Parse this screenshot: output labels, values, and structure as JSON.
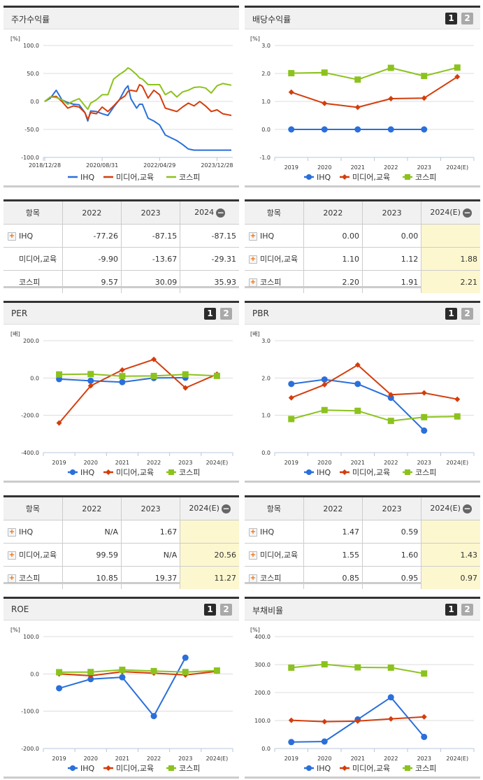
{
  "page_buttons": [
    "1",
    "2"
  ],
  "colors": {
    "IHQ": "#2a6fdb",
    "media": "#d43d0c",
    "kospi": "#8cc21e",
    "dark_border": "#333333",
    "highlight": "#fdf7cf"
  },
  "chart_data": [
    {
      "type": "line",
      "title": "주가수익률",
      "unit": "[%]",
      "ylim": [
        -100,
        100
      ],
      "yticks": [
        100,
        50,
        0,
        -50,
        -100
      ],
      "ytick_labels": [
        "100.0",
        "50.0",
        "0.0",
        "-50.0",
        "-100.0"
      ],
      "x": [
        "2018-12",
        "2019-02",
        "2019-04",
        "2019-06",
        "2019-08",
        "2019-10",
        "2019-12",
        "2020-02",
        "2020-03",
        "2020-04",
        "2020-06",
        "2020-08",
        "2020-10",
        "2020-12",
        "2021-02",
        "2021-04",
        "2021-05",
        "2021-06",
        "2021-08",
        "2021-09",
        "2021-10",
        "2021-12",
        "2022-02",
        "2022-04",
        "2022-06",
        "2022-08",
        "2022-10",
        "2022-12",
        "2023-02",
        "2023-04",
        "2023-06",
        "2023-08",
        "2023-10",
        "2023-12",
        "2024-02",
        "2024-04",
        "2024-05"
      ],
      "xticks": [
        "2018-12",
        "2020-08",
        "2022-04",
        "2023-12"
      ],
      "xtick_labels": [
        "2018/12/28",
        "2020/08/31",
        "2022/04/29",
        "2023/12/28"
      ],
      "grid": true,
      "legend": "bottom",
      "series": [
        {
          "name": "IHQ",
          "color": "#2a6fdb",
          "values": [
            0,
            6,
            20,
            3,
            -2,
            -5,
            -6,
            -20,
            -35,
            -17,
            -18,
            -22,
            -25,
            -10,
            3,
            22,
            28,
            5,
            -12,
            -5,
            -5,
            -30,
            -35,
            -42,
            -60,
            -65,
            -70,
            -77,
            -85,
            -87,
            -87,
            -87,
            -87,
            -87,
            -87,
            -87,
            -87
          ]
        },
        {
          "name": "미디어,교육",
          "color": "#d43d0c",
          "values": [
            0,
            8,
            9,
            0,
            -12,
            -8,
            -10,
            -20,
            -32,
            -20,
            -22,
            -10,
            -18,
            -8,
            3,
            10,
            18,
            20,
            18,
            30,
            27,
            6,
            20,
            12,
            -12,
            -15,
            -18,
            -10,
            -3,
            -8,
            0,
            -8,
            -18,
            -15,
            -22,
            -24,
            -25
          ]
        },
        {
          "name": "코스피",
          "color": "#8cc21e",
          "values": [
            0,
            8,
            7,
            3,
            -5,
            1,
            5,
            -8,
            -14,
            -3,
            3,
            12,
            12,
            40,
            48,
            55,
            60,
            57,
            48,
            42,
            40,
            30,
            30,
            30,
            12,
            18,
            8,
            17,
            20,
            25,
            26,
            24,
            15,
            28,
            32,
            30,
            29
          ]
        }
      ]
    },
    {
      "type": "line",
      "title": "배당수익률",
      "unit": "[%]",
      "ylim": [
        -1,
        3
      ],
      "yticks": [
        3,
        2,
        1,
        0,
        -1
      ],
      "ytick_labels": [
        "3.0",
        "2.0",
        "1.0",
        "0.0",
        "-1.0"
      ],
      "categories": [
        "2019",
        "2020",
        "2021",
        "2022",
        "2023",
        "2024(E)"
      ],
      "grid": true,
      "legend": "bottom",
      "series": [
        {
          "name": "IHQ",
          "color": "#2a6fdb",
          "marker": "circle",
          "values": [
            0,
            0,
            0,
            0,
            0,
            null
          ]
        },
        {
          "name": "미디어,교육",
          "color": "#d43d0c",
          "marker": "diamond",
          "values": [
            1.33,
            0.93,
            0.79,
            1.1,
            1.12,
            1.88
          ]
        },
        {
          "name": "코스피",
          "color": "#8cc21e",
          "marker": "square",
          "values": [
            2.01,
            2.03,
            1.78,
            2.2,
            1.91,
            2.21
          ]
        }
      ]
    },
    {
      "type": "line",
      "title": "PER",
      "unit": "[배]",
      "ylim": [
        -400,
        200
      ],
      "yticks": [
        200,
        0,
        -200,
        -400
      ],
      "ytick_labels": [
        "200.0",
        "0.0",
        "-200.0",
        "-400.0"
      ],
      "categories": [
        "2019",
        "2020",
        "2021",
        "2022",
        "2023",
        "2024(E)"
      ],
      "grid": true,
      "legend": "bottom",
      "series": [
        {
          "name": "IHQ",
          "color": "#2a6fdb",
          "marker": "circle",
          "values": [
            -6,
            -15,
            -22,
            0,
            1.67,
            null
          ]
        },
        {
          "name": "미디어,교육",
          "color": "#d43d0c",
          "marker": "diamond",
          "values": [
            -241,
            -42,
            43,
            99.59,
            -53,
            20.56
          ]
        },
        {
          "name": "코스피",
          "color": "#8cc21e",
          "marker": "square",
          "values": [
            19,
            21,
            10,
            10.85,
            19.37,
            11.27
          ]
        }
      ]
    },
    {
      "type": "line",
      "title": "PBR",
      "unit": "[배]",
      "ylim": [
        0,
        3
      ],
      "yticks": [
        3,
        2,
        1,
        0
      ],
      "ytick_labels": [
        "3.0",
        "2.0",
        "1.0",
        "0.0"
      ],
      "categories": [
        "2019",
        "2020",
        "2021",
        "2022",
        "2023",
        "2024(E)"
      ],
      "grid": true,
      "legend": "bottom",
      "series": [
        {
          "name": "IHQ",
          "color": "#2a6fdb",
          "marker": "circle",
          "values": [
            1.84,
            1.96,
            1.84,
            1.47,
            0.59,
            null
          ]
        },
        {
          "name": "미디어,교육",
          "color": "#d43d0c",
          "marker": "diamond",
          "values": [
            1.47,
            1.82,
            2.35,
            1.55,
            1.6,
            1.43
          ]
        },
        {
          "name": "코스피",
          "color": "#8cc21e",
          "marker": "square",
          "values": [
            0.9,
            1.14,
            1.12,
            0.85,
            0.95,
            0.97
          ]
        }
      ]
    },
    {
      "type": "line",
      "title": "ROE",
      "unit": "[%]",
      "ylim": [
        -200,
        100
      ],
      "yticks": [
        100,
        0,
        -100,
        -200
      ],
      "ytick_labels": [
        "100.0",
        "0.0",
        "-100.0",
        "-200.0"
      ],
      "categories": [
        "2019",
        "2020",
        "2021",
        "2022",
        "2023",
        "2024(E)"
      ],
      "grid": true,
      "legend": "bottom",
      "series": [
        {
          "name": "IHQ",
          "color": "#2a6fdb",
          "marker": "circle",
          "values": [
            -38.5,
            -14,
            -9,
            -113,
            43.5,
            null
          ]
        },
        {
          "name": "미디어,교육",
          "color": "#d43d0c",
          "marker": "diamond",
          "values": [
            0,
            -5,
            6,
            2,
            -3,
            7
          ]
        },
        {
          "name": "코스피",
          "color": "#8cc21e",
          "marker": "square",
          "values": [
            4.5,
            5,
            11,
            7.5,
            5,
            9
          ]
        }
      ]
    },
    {
      "type": "line",
      "title": "부채비율",
      "unit": "[%]",
      "ylim": [
        0,
        400
      ],
      "yticks": [
        400,
        300,
        200,
        100,
        0
      ],
      "ytick_labels": [
        "400.0",
        "300.0",
        "200.0",
        "100.0",
        "0.0"
      ],
      "categories": [
        "2019",
        "2020",
        "2021",
        "2022",
        "2023",
        "2024(E)"
      ],
      "grid": true,
      "legend": "bottom",
      "series": [
        {
          "name": "IHQ",
          "color": "#2a6fdb",
          "marker": "circle",
          "values": [
            23,
            25,
            104,
            183,
            41.5,
            null
          ]
        },
        {
          "name": "미디어,교육",
          "color": "#d43d0c",
          "marker": "diamond",
          "values": [
            101,
            96,
            98,
            106,
            113,
            null
          ]
        },
        {
          "name": "코스피",
          "color": "#8cc21e",
          "marker": "square",
          "values": [
            289,
            301,
            290,
            289,
            268,
            null
          ]
        }
      ]
    }
  ],
  "tables": [
    {
      "header": [
        "항목",
        "2022",
        "2023",
        "2024"
      ],
      "highlight_last": false,
      "rows": [
        {
          "label": "IHQ",
          "plus": true,
          "values": [
            "-77.26",
            "-87.15",
            "-87.15"
          ]
        },
        {
          "label": "미디어,교육",
          "plus": false,
          "values": [
            "-9.90",
            "-13.67",
            "-29.31"
          ]
        },
        {
          "label": "코스피",
          "plus": false,
          "values": [
            "9.57",
            "30.09",
            "35.93"
          ]
        }
      ]
    },
    {
      "header": [
        "항목",
        "2022",
        "2023",
        "2024(E)"
      ],
      "highlight_last": true,
      "rows": [
        {
          "label": "IHQ",
          "plus": true,
          "values": [
            "0.00",
            "0.00",
            ""
          ]
        },
        {
          "label": "미디어,교육",
          "plus": true,
          "values": [
            "1.10",
            "1.12",
            "1.88"
          ]
        },
        {
          "label": "코스피",
          "plus": true,
          "values": [
            "2.20",
            "1.91",
            "2.21"
          ]
        }
      ]
    },
    {
      "header": [
        "항목",
        "2022",
        "2023",
        "2024(E)"
      ],
      "highlight_last": true,
      "rows": [
        {
          "label": "IHQ",
          "plus": true,
          "values": [
            "N/A",
            "1.67",
            ""
          ]
        },
        {
          "label": "미디어,교육",
          "plus": true,
          "values": [
            "99.59",
            "N/A",
            "20.56"
          ]
        },
        {
          "label": "코스피",
          "plus": true,
          "values": [
            "10.85",
            "19.37",
            "11.27"
          ]
        }
      ]
    },
    {
      "header": [
        "항목",
        "2022",
        "2023",
        "2024(E)"
      ],
      "highlight_last": true,
      "rows": [
        {
          "label": "IHQ",
          "plus": true,
          "values": [
            "1.47",
            "0.59",
            ""
          ]
        },
        {
          "label": "미디어,교육",
          "plus": true,
          "values": [
            "1.55",
            "1.60",
            "1.43"
          ]
        },
        {
          "label": "코스피",
          "plus": true,
          "values": [
            "0.85",
            "0.95",
            "0.97"
          ]
        }
      ]
    }
  ]
}
